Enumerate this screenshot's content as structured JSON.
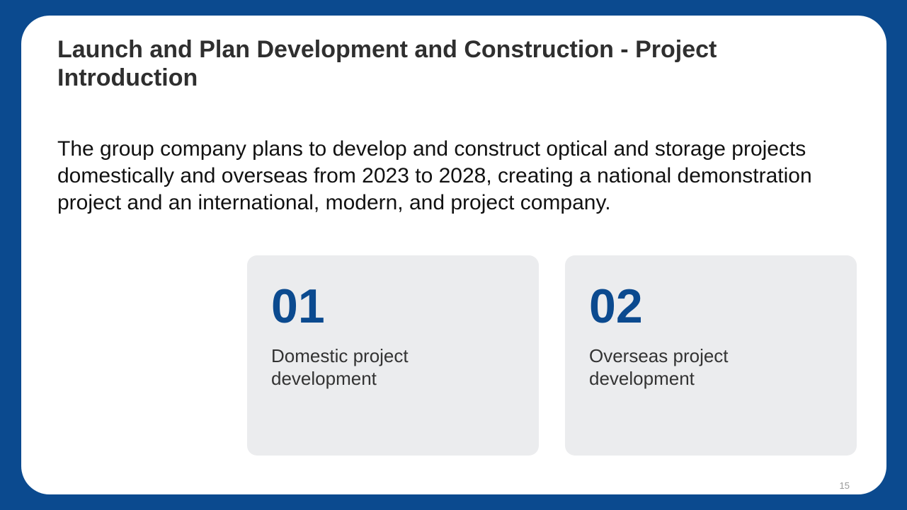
{
  "title": "Launch and Plan Development and Construction - Project Introduction",
  "intro": "The group company plans to develop and construct optical and storage projects domestically and overseas from 2023 to 2028, creating a national demonstration project and an international, modern, and project company.",
  "cards": [
    {
      "number": "01",
      "label": "Domestic project development"
    },
    {
      "number": "02",
      "label": "Overseas project development"
    }
  ],
  "page_number": "15",
  "colors": {
    "brand": "#0b4a8f",
    "card_bg": "#ebecee"
  }
}
